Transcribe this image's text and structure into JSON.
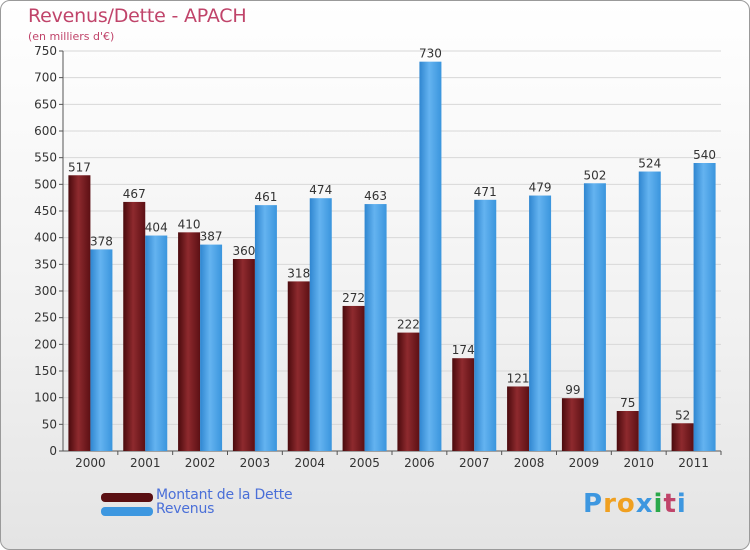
{
  "header": {
    "title": "Revenus/Dette - APACH",
    "subtitle": "(en milliers d'€)"
  },
  "chart_data": {
    "type": "bar",
    "categories": [
      "2000",
      "2001",
      "2002",
      "2003",
      "2004",
      "2005",
      "2006",
      "2007",
      "2008",
      "2009",
      "2010",
      "2011"
    ],
    "series": [
      {
        "name": "Montant de la Dette",
        "color": "#7a1e22",
        "values": [
          517,
          467,
          410,
          360,
          318,
          272,
          222,
          174,
          121,
          99,
          75,
          52
        ]
      },
      {
        "name": "Revenus",
        "color": "#3d97e0",
        "values": [
          378,
          404,
          387,
          461,
          474,
          463,
          730,
          471,
          479,
          502,
          524,
          540
        ]
      }
    ],
    "ylim": [
      0,
      750
    ],
    "yticks": [
      0,
      50,
      100,
      150,
      200,
      250,
      300,
      350,
      400,
      450,
      500,
      550,
      600,
      650,
      700,
      750
    ],
    "grid": true,
    "legend_position": "bottom-left"
  },
  "legend": {
    "items": [
      {
        "label": "Montant de la Dette",
        "color": "#5a0f12"
      },
      {
        "label": "Revenus",
        "color": "#3d97e0"
      }
    ]
  },
  "logo": {
    "text": "Proxiti",
    "letters": [
      "P",
      "r",
      "o",
      "x",
      "i",
      "t",
      "i"
    ],
    "colors": [
      "#3d97e0",
      "#f0a020",
      "#f0a020",
      "#3d97e0",
      "#2aa84a",
      "#c0446a",
      "#3d97e0"
    ]
  }
}
